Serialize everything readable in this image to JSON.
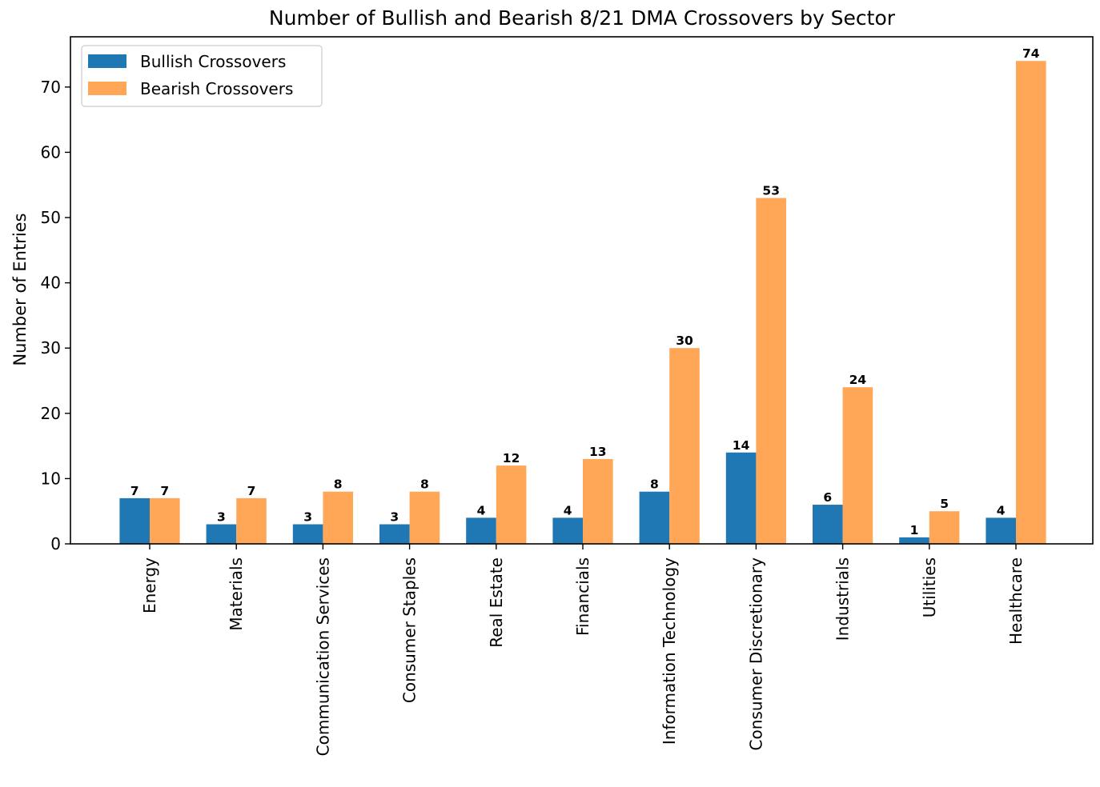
{
  "chart_data": {
    "type": "bar",
    "title": "Number of Bullish and Bearish 8/21 DMA Crossovers by Sector",
    "xlabel": "",
    "ylabel": "Number of Entries",
    "ylim": [
      0,
      77.7
    ],
    "yticks": [
      0,
      10,
      20,
      30,
      40,
      50,
      60,
      70
    ],
    "grid": false,
    "legend_position": "top-left",
    "categories": [
      "Energy",
      "Materials",
      "Communication Services",
      "Consumer Staples",
      "Real Estate",
      "Financials",
      "Information Technology",
      "Consumer Discretionary",
      "Industrials",
      "Utilities",
      "Healthcare"
    ],
    "series": [
      {
        "name": "Bullish Crossovers",
        "color": "#1f77b4",
        "values": [
          7,
          3,
          3,
          3,
          4,
          4,
          8,
          14,
          6,
          1,
          4
        ]
      },
      {
        "name": "Bearish Crossovers",
        "color": "#ffa657",
        "values": [
          7,
          7,
          8,
          8,
          12,
          13,
          30,
          53,
          24,
          5,
          74
        ]
      }
    ]
  }
}
